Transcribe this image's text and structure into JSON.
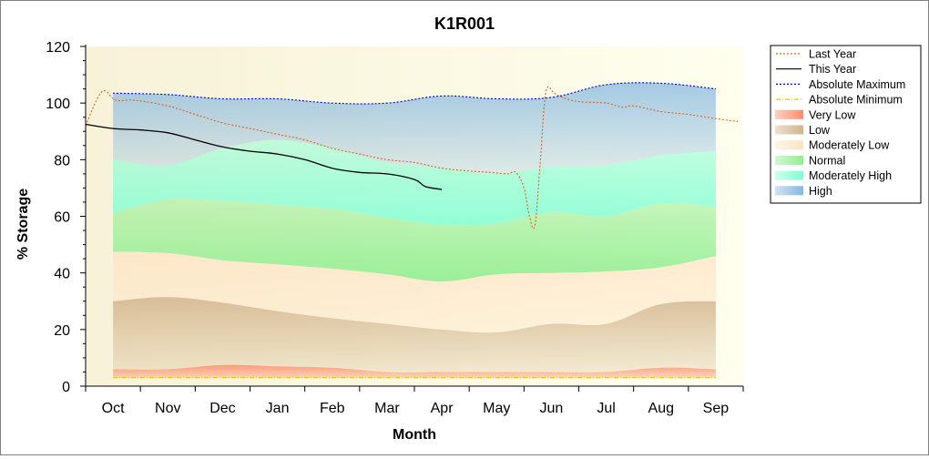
{
  "chart_data": {
    "type": "area",
    "title": "K1R001",
    "xlabel": "Month",
    "ylabel": "% Storage",
    "ylim": [
      0,
      120
    ],
    "y_ticks": [
      0,
      20,
      40,
      60,
      80,
      100,
      120
    ],
    "x_domain": [
      0,
      12
    ],
    "x_ticks": [
      {
        "label": "Oct",
        "x": 0.5
      },
      {
        "label": "Nov",
        "x": 1.5
      },
      {
        "label": "Dec",
        "x": 2.5
      },
      {
        "label": "Jan",
        "x": 3.5
      },
      {
        "label": "Feb",
        "x": 4.5
      },
      {
        "label": "Mar",
        "x": 5.5
      },
      {
        "label": "Apr",
        "x": 6.5
      },
      {
        "label": "May",
        "x": 7.5
      },
      {
        "label": "Jun",
        "x": 8.5
      },
      {
        "label": "Jul",
        "x": 9.5
      },
      {
        "label": "Aug",
        "x": 10.5
      },
      {
        "label": "Sep",
        "x": 11.5
      }
    ],
    "grid": false,
    "legend_position": "right",
    "bands_x": [
      0.5,
      1.5,
      2.5,
      3.5,
      4.5,
      5.5,
      6.5,
      7.5,
      8.5,
      9.5,
      10.5,
      11.5
    ],
    "band_bounds": {
      "floor": [
        3,
        3,
        3,
        3,
        3,
        3,
        3,
        3,
        3,
        3,
        3,
        3
      ],
      "very_low_top": [
        6,
        6,
        7.5,
        7,
        6.5,
        5,
        5,
        5,
        5,
        5,
        6.5,
        6
      ],
      "low_top": [
        30,
        31.5,
        29.5,
        26.5,
        24,
        22,
        20,
        19,
        22,
        22,
        29,
        30
      ],
      "mod_low_top": [
        47.5,
        47,
        44.5,
        43,
        41.5,
        39.5,
        37,
        39.5,
        40,
        40.5,
        42,
        46
      ],
      "normal_top": [
        61,
        66,
        65.5,
        64,
        62.5,
        59.5,
        57,
        57.5,
        61.5,
        60,
        64.5,
        63.5
      ],
      "mod_high_top": [
        80,
        78,
        84,
        87,
        84,
        79,
        77,
        75,
        77.5,
        78,
        81.5,
        83
      ],
      "high_top": [
        103.5,
        103,
        101.5,
        101.5,
        100,
        100,
        102.5,
        101.5,
        102,
        106.5,
        107,
        105
      ]
    },
    "series": [
      {
        "name": "Last Year",
        "color": "#d2691e",
        "dash": "dotted",
        "x": [
          0,
          0.3,
          0.55,
          0.9,
          1.5,
          2.0,
          2.5,
          3.0,
          3.5,
          4.0,
          4.5,
          5.0,
          5.5,
          6.0,
          6.5,
          7.0,
          7.4,
          7.7,
          7.85,
          8.0,
          8.1,
          8.2,
          8.3,
          8.4,
          8.55,
          8.7,
          9.0,
          9.5,
          9.8,
          10.0,
          10.5,
          11.0,
          11.5,
          11.9
        ],
        "y": [
          92,
          104,
          101,
          101,
          99,
          96,
          93,
          91,
          89,
          87,
          84,
          82,
          80,
          79,
          77,
          76,
          75.5,
          75,
          75.5,
          70,
          60,
          57,
          80,
          104,
          103.5,
          102,
          100.5,
          100,
          98.5,
          99,
          97,
          96,
          94.5,
          93.5
        ]
      },
      {
        "name": "This Year",
        "color": "#000000",
        "dash": "solid",
        "x": [
          0,
          0.5,
          1.0,
          1.5,
          2.0,
          2.5,
          3.0,
          3.5,
          4.0,
          4.5,
          5.0,
          5.5,
          6.0,
          6.2,
          6.5
        ],
        "y": [
          92.5,
          91,
          90.5,
          89.5,
          87,
          84.5,
          83,
          82,
          80,
          77,
          75.5,
          75,
          73,
          70.5,
          69.5
        ]
      },
      {
        "name": "Absolute Maximum",
        "color": "#0000cc",
        "dash": "dotted",
        "x": [
          0.5,
          1.5,
          2.5,
          3.5,
          4.5,
          5.5,
          6.5,
          7.5,
          8.5,
          9.5,
          10.5,
          11.5
        ],
        "y": [
          103.5,
          103,
          101.5,
          101.5,
          100,
          100,
          102.5,
          101.5,
          102,
          106.5,
          107,
          105
        ]
      },
      {
        "name": "Absolute Minimum",
        "color": "#e6c800",
        "dash": "dashdot",
        "x": [
          0.5,
          1.5,
          2.5,
          3.5,
          4.5,
          5.5,
          6.5,
          7.5,
          8.5,
          9.5,
          10.5,
          11.5
        ],
        "y": [
          3,
          3,
          3,
          3,
          3,
          3,
          3,
          3,
          3,
          3,
          3,
          3
        ]
      }
    ],
    "legend": [
      {
        "label": "Last Year",
        "kind": "line",
        "color": "#d2691e",
        "dash": "dotted"
      },
      {
        "label": "This Year",
        "kind": "line",
        "color": "#000000",
        "dash": "solid"
      },
      {
        "label": "Absolute Maximum",
        "kind": "line",
        "color": "#0000cc",
        "dash": "dotted"
      },
      {
        "label": "Absolute Minimum",
        "kind": "line",
        "color": "#e6c800",
        "dash": "dashdot"
      },
      {
        "label": "Very Low",
        "kind": "band",
        "color": "#ff8c69"
      },
      {
        "label": "Low",
        "kind": "band",
        "color": "#d2b48c"
      },
      {
        "label": "Moderately Low",
        "kind": "band",
        "color": "#ffe4c4"
      },
      {
        "label": "Normal",
        "kind": "band",
        "color": "#90ee90"
      },
      {
        "label": "Moderately High",
        "kind": "band",
        "color": "#7fffd4"
      },
      {
        "label": "High",
        "kind": "band",
        "color": "#87b8e0"
      }
    ],
    "colors": {
      "plot_bg_left": "#f7f2d8",
      "plot_bg_right": "#ffffee",
      "very_low": "#ff8c69",
      "low": "#d2b48c",
      "moderately_low": "#ffe4c4",
      "normal": "#90ee90",
      "moderately_high": "#7fffd4",
      "high": "#87b8e0"
    }
  }
}
